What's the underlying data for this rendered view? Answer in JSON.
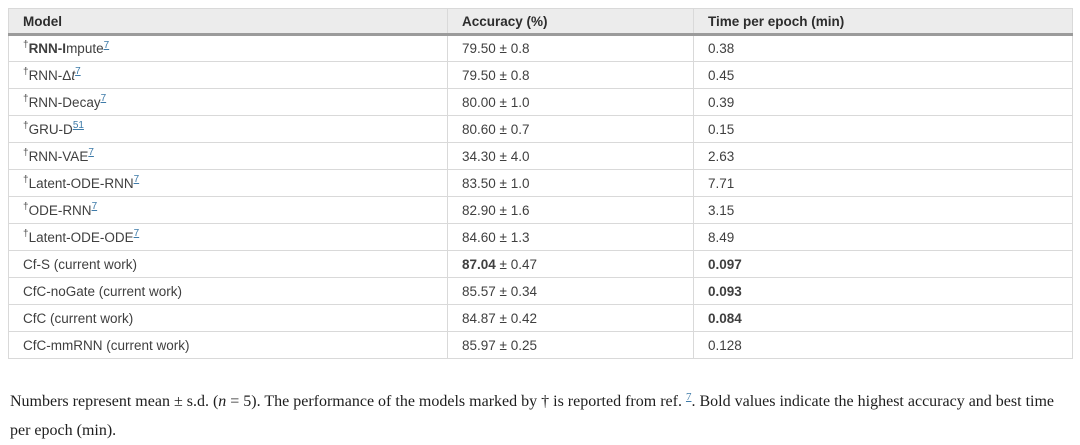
{
  "colors": {
    "link_blue": "#3d7aa8",
    "header_bg": "#ececec",
    "header_rule": "#9b9b9b",
    "cell_border": "#d9d9d9",
    "body_text": "#3f3f3f"
  },
  "table": {
    "columns": [
      "Model",
      "Accuracy (%)",
      "Time per epoch (min)"
    ],
    "rows": [
      {
        "dagger": "†",
        "segments": [
          {
            "t": "RNN-I",
            "b": 1
          },
          {
            "t": "mpute"
          }
        ],
        "ref": "7",
        "acc": {
          "mean": "79.50",
          "sd": "0.8",
          "bold": false
        },
        "time": {
          "value": "0.38",
          "bold": false
        }
      },
      {
        "dagger": "†",
        "segments": [
          {
            "t": "RNN-Δ"
          },
          {
            "t": "t",
            "i": 1
          }
        ],
        "ref": "7",
        "acc": {
          "mean": "79.50",
          "sd": "0.8",
          "bold": false
        },
        "time": {
          "value": "0.45",
          "bold": false
        }
      },
      {
        "dagger": "†",
        "segments": [
          {
            "t": "RNN-Decay"
          }
        ],
        "ref": "7",
        "acc": {
          "mean": "80.00",
          "sd": "1.0",
          "bold": false
        },
        "time": {
          "value": "0.39",
          "bold": false
        }
      },
      {
        "dagger": "†",
        "segments": [
          {
            "t": "GRU-D"
          }
        ],
        "ref": "51",
        "acc": {
          "mean": "80.60",
          "sd": "0.7",
          "bold": false
        },
        "time": {
          "value": "0.15",
          "bold": false
        }
      },
      {
        "dagger": "†",
        "segments": [
          {
            "t": "RNN-VAE"
          }
        ],
        "ref": "7",
        "acc": {
          "mean": "34.30",
          "sd": "4.0",
          "bold": false
        },
        "time": {
          "value": "2.63",
          "bold": false
        }
      },
      {
        "dagger": "†",
        "segments": [
          {
            "t": "Latent-ODE-RNN"
          }
        ],
        "ref": "7",
        "acc": {
          "mean": "83.50",
          "sd": "1.0",
          "bold": false
        },
        "time": {
          "value": "7.71",
          "bold": false
        }
      },
      {
        "dagger": "†",
        "segments": [
          {
            "t": "ODE-RNN"
          }
        ],
        "ref": "7",
        "acc": {
          "mean": "82.90",
          "sd": "1.6",
          "bold": false
        },
        "time": {
          "value": "3.15",
          "bold": false
        }
      },
      {
        "dagger": "†",
        "segments": [
          {
            "t": "Latent-ODE-ODE"
          }
        ],
        "ref": "7",
        "acc": {
          "mean": "84.60",
          "sd": "1.3",
          "bold": false
        },
        "time": {
          "value": "8.49",
          "bold": false
        }
      },
      {
        "dagger": "",
        "segments": [
          {
            "t": "Cf-S (current work)"
          }
        ],
        "ref": "",
        "acc": {
          "mean": "87.04",
          "sd": "0.47",
          "bold": true
        },
        "time": {
          "value": "0.097",
          "bold": true
        }
      },
      {
        "dagger": "",
        "segments": [
          {
            "t": "CfC-noGate (current work)"
          }
        ],
        "ref": "",
        "acc": {
          "mean": "85.57",
          "sd": "0.34",
          "bold": false
        },
        "time": {
          "value": "0.093",
          "bold": true
        }
      },
      {
        "dagger": "",
        "segments": [
          {
            "t": "CfC (current work)"
          }
        ],
        "ref": "",
        "acc": {
          "mean": "84.87",
          "sd": "0.42",
          "bold": false
        },
        "time": {
          "value": "0.084",
          "bold": true
        }
      },
      {
        "dagger": "",
        "segments": [
          {
            "t": "CfC-mmRNN (current work)"
          }
        ],
        "ref": "",
        "acc": {
          "mean": "85.97",
          "sd": "0.25",
          "bold": false
        },
        "time": {
          "value": "0.128",
          "bold": false
        }
      }
    ]
  },
  "footnote": {
    "segments": [
      {
        "t": "Numbers represent mean ± s.d. ("
      },
      {
        "t": "n",
        "i": 1
      },
      {
        "t": " = 5). The performance of the models marked by † is reported from ref. "
      },
      {
        "t": "7",
        "ref": 1
      },
      {
        "t": ". Bold values indicate the highest accuracy and best time per epoch (min)."
      }
    ]
  },
  "chart_data": {
    "type": "table",
    "title": "",
    "columns": [
      "Model",
      "Accuracy (%)",
      "Time per epoch (min)"
    ],
    "rows": [
      [
        "†RNN-Impute7",
        "79.50 ± 0.8",
        "0.38"
      ],
      [
        "†RNN-Δt7",
        "79.50 ± 0.8",
        "0.45"
      ],
      [
        "†RNN-Decay7",
        "80.00 ± 1.0",
        "0.39"
      ],
      [
        "†GRU-D51",
        "80.60 ± 0.7",
        "0.15"
      ],
      [
        "†RNN-VAE7",
        "34.30 ± 4.0",
        "2.63"
      ],
      [
        "†Latent-ODE-RNN7",
        "83.50 ± 1.0",
        "7.71"
      ],
      [
        "†ODE-RNN7",
        "82.90 ± 1.6",
        "3.15"
      ],
      [
        "†Latent-ODE-ODE7",
        "84.60 ± 1.3",
        "8.49"
      ],
      [
        "Cf-S (current work)",
        "87.04 ± 0.47",
        "0.097"
      ],
      [
        "CfC-noGate (current work)",
        "85.57 ± 0.34",
        "0.093"
      ],
      [
        "CfC (current work)",
        "84.87 ± 0.42",
        "0.084"
      ],
      [
        "CfC-mmRNN (current work)",
        "85.97 ± 0.25",
        "0.128"
      ]
    ]
  }
}
